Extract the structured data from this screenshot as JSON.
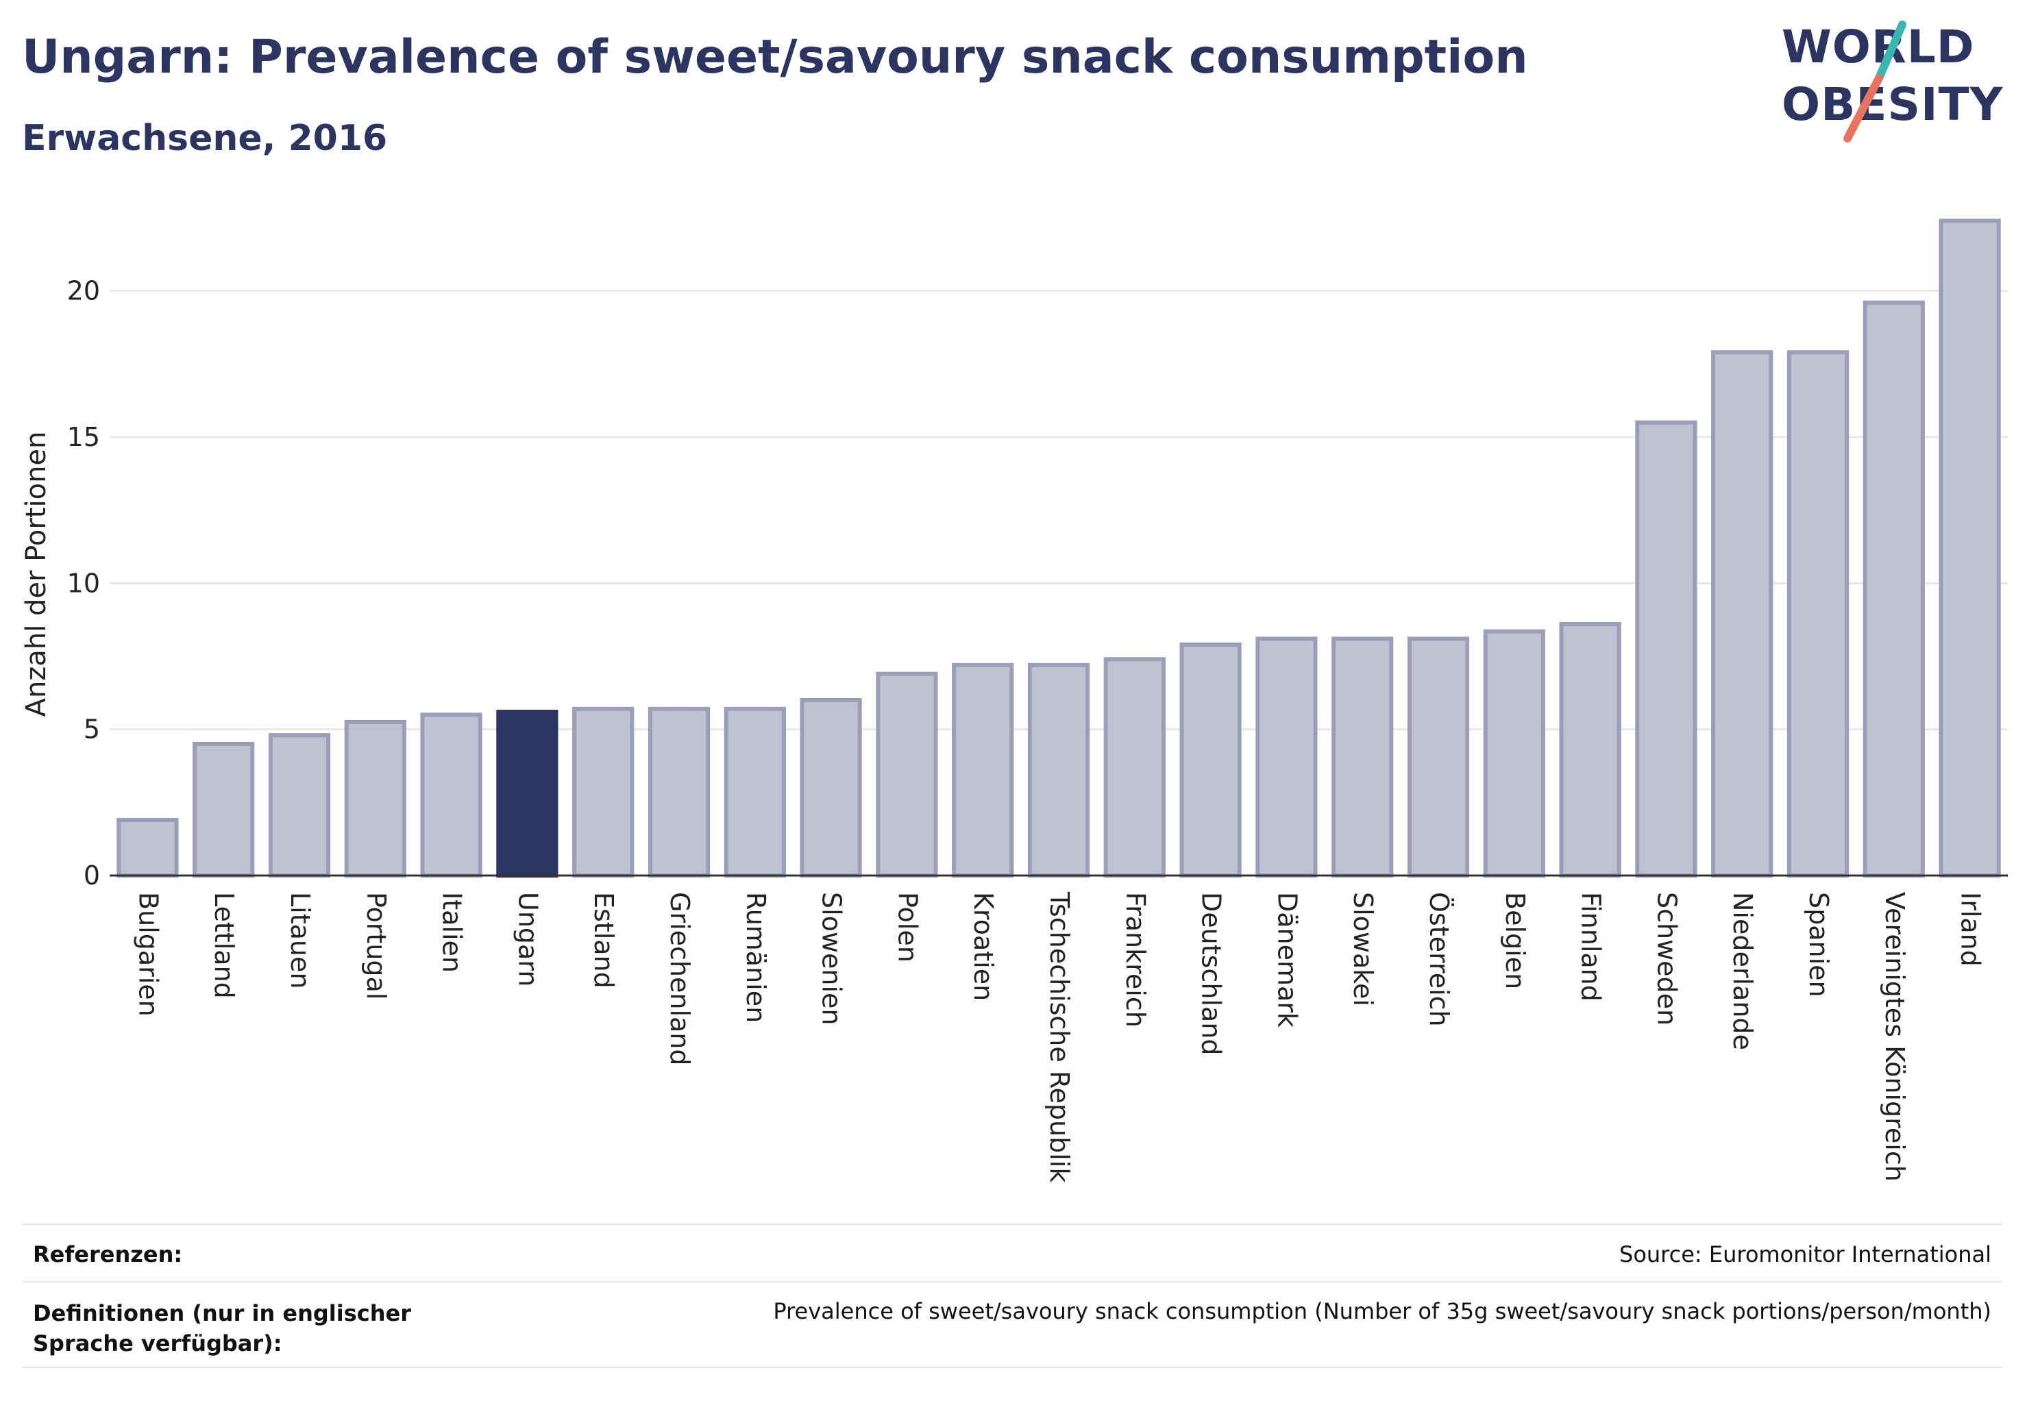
{
  "header": {
    "title": "Ungarn: Prevalence of sweet/savoury snack consumption",
    "subtitle": "Erwachsene, 2016"
  },
  "logo": {
    "line1": "WORLD",
    "line2": "OBESITY"
  },
  "colors": {
    "highlight": "#2b3560",
    "bar_fill": "#c0c2d0",
    "bar_stroke": "#9a9eb8",
    "grid": "#e8e8e8"
  },
  "chart_data": {
    "type": "bar",
    "title": "Ungarn: Prevalence of sweet/savoury snack consumption",
    "subtitle": "Erwachsene, 2016",
    "xlabel": "",
    "ylabel": "Anzahl der Portionen",
    "ylim": [
      0,
      22.5
    ],
    "yticks": [
      0,
      5,
      10,
      15,
      20
    ],
    "grid": true,
    "highlight": "Ungarn",
    "categories": [
      "Bulgarien",
      "Lettland",
      "Litauen",
      "Portugal",
      "Italien",
      "Ungarn",
      "Estland",
      "Griechenland",
      "Rumänien",
      "Slowenien",
      "Polen",
      "Kroatien",
      "Tschechische Republik",
      "Frankreich",
      "Deutschland",
      "Dänemark",
      "Slowakei",
      "Österreich",
      "Belgien",
      "Finnland",
      "Schweden",
      "Niederlande",
      "Spanien",
      "Vereinigtes Königreich",
      "Irland"
    ],
    "values": [
      1.9,
      4.5,
      4.8,
      5.25,
      5.5,
      5.6,
      5.7,
      5.7,
      5.7,
      6.0,
      6.9,
      7.2,
      7.2,
      7.4,
      7.9,
      8.1,
      8.1,
      8.1,
      8.35,
      8.6,
      15.5,
      17.9,
      17.9,
      19.6,
      22.4
    ]
  },
  "footer": {
    "references_label": "Referenzen:",
    "references_value": "Source: Euromonitor International",
    "definitions_label": "Definitionen (nur in englischer Sprache verfügbar):",
    "definitions_value": "Prevalence of sweet/savoury snack consumption (Number of 35g sweet/savoury snack portions/person/month)"
  }
}
